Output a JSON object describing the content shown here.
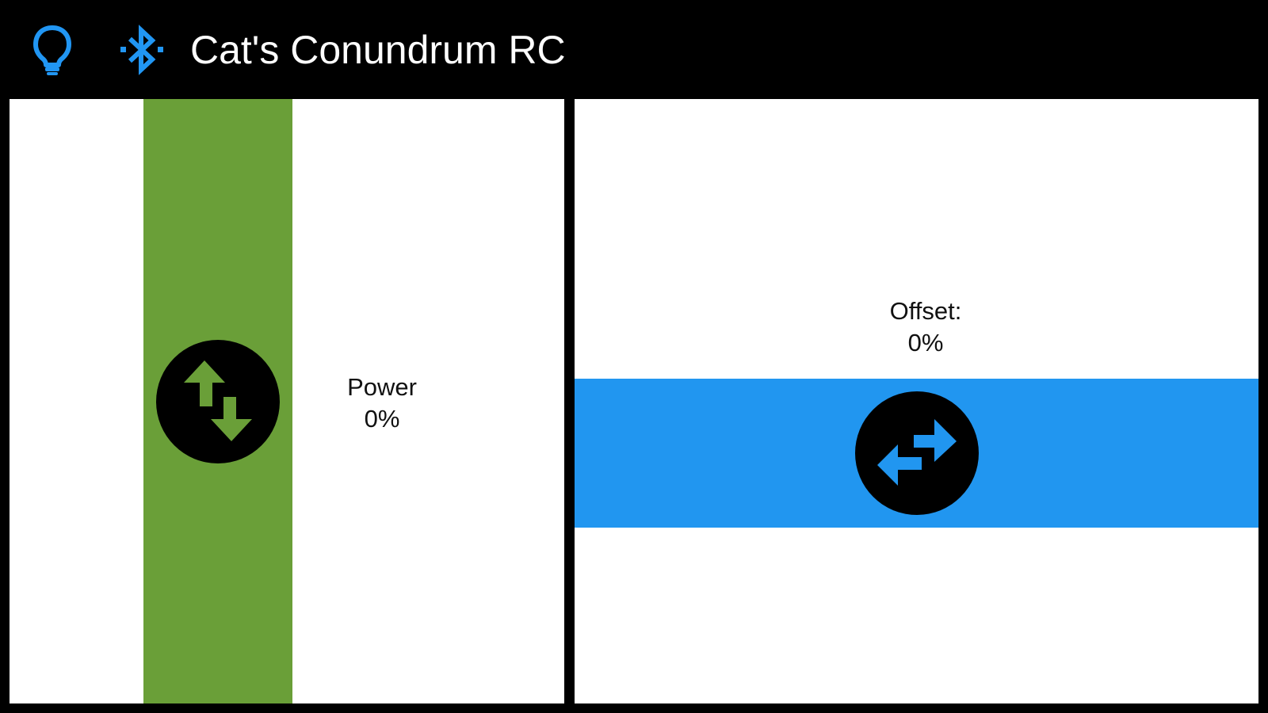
{
  "app": {
    "title": "Cat's Conundrum RC"
  },
  "header": {
    "icons": [
      "lightbulb-icon",
      "bluetooth-icon"
    ],
    "icon_color": "#2196f3"
  },
  "power": {
    "label": "Power",
    "value": "0%",
    "track_color": "#6a9f38",
    "knob_icon": "swap-vertical-icon"
  },
  "offset": {
    "label": "Offset:",
    "value": "0%",
    "track_color": "#2196f0",
    "knob_icon": "swap-horizontal-icon"
  }
}
